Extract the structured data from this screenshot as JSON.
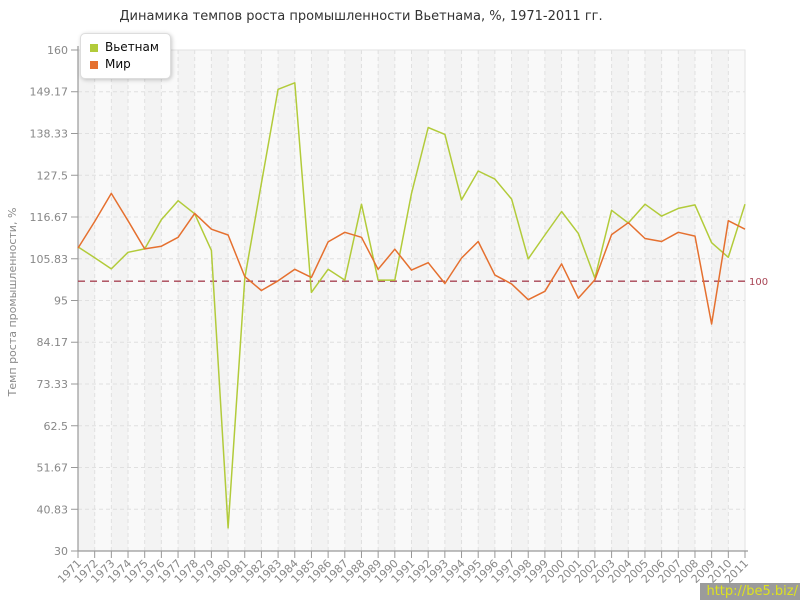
{
  "page": {
    "watermark": "http://be5.biz/"
  },
  "colors": {
    "plot_bg": "#f9f9f9",
    "band": "#f3f3f3",
    "grid": "#e0e0e0",
    "panel_border": "#e2e2e2",
    "axis": "#999999",
    "tick_text": "#888888",
    "title_text": "#333333",
    "watermark_bg": "#9b9b9b",
    "watermark_text": "#dde21f"
  },
  "chart_data": {
    "type": "line",
    "title": "Динамика темпов роста промышленности Вьетнама, %, 1971-2011 гг.",
    "ylabel": "Темп роста промышленности, %",
    "xlabel": "",
    "grid": true,
    "legend_position": "top-left",
    "ylim": [
      30,
      160
    ],
    "y_ticks": [
      30,
      40.83,
      51.67,
      62.5,
      73.33,
      84.17,
      95,
      105.83,
      116.67,
      127.5,
      138.33,
      149.17,
      160
    ],
    "reference_line": {
      "value": 100,
      "label": "100",
      "color": "#a84454"
    },
    "x": [
      1971,
      1972,
      1973,
      1974,
      1975,
      1976,
      1977,
      1978,
      1979,
      1980,
      1981,
      1982,
      1983,
      1984,
      1985,
      1986,
      1987,
      1988,
      1989,
      1990,
      1991,
      1992,
      1993,
      1994,
      1995,
      1996,
      1997,
      1998,
      1999,
      2000,
      2001,
      2002,
      2003,
      2004,
      2005,
      2006,
      2007,
      2008,
      2009,
      2010,
      2011
    ],
    "series": [
      {
        "id": "vietnam",
        "name": "Вьетнам",
        "color": "#b2cb3a",
        "values": [
          108.9,
          106.1,
          103.2,
          107.5,
          108.4,
          116.0,
          120.9,
          117.5,
          108.0,
          36.0,
          100.8,
          125.4,
          149.8,
          151.5,
          97.1,
          103.1,
          100.3,
          120.0,
          100.3,
          100.3,
          122.8,
          139.9,
          138.1,
          121.1,
          128.6,
          126.5,
          121.3,
          105.8,
          112.0,
          118.1,
          112.4,
          100.8,
          118.4,
          115.1,
          120.0,
          116.9,
          118.9,
          119.8,
          110.0,
          106.2,
          120.0
        ]
      },
      {
        "id": "world",
        "name": "Мир",
        "color": "#e5702f",
        "values": [
          108.6,
          115.5,
          122.8,
          115.7,
          108.4,
          109.1,
          111.4,
          117.6,
          113.5,
          112.0,
          101.2,
          97.6,
          100.1,
          103.1,
          101.0,
          110.2,
          112.7,
          111.4,
          103.1,
          108.3,
          102.9,
          104.8,
          99.4,
          106.0,
          110.3,
          101.6,
          99.3,
          95.2,
          97.4,
          104.5,
          95.6,
          100.4,
          112.1,
          115.2,
          111.1,
          110.3,
          112.7,
          111.7,
          88.9,
          115.7,
          113.5
        ]
      }
    ]
  }
}
